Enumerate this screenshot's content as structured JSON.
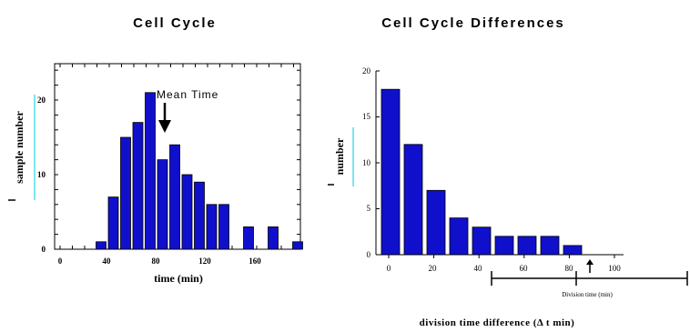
{
  "chart_data": [
    {
      "type": "bar",
      "title": "Cell Cycle",
      "xlabel": "time (min)",
      "ylabel": "sample number",
      "xlim": [
        0,
        200
      ],
      "ylim": [
        0,
        24
      ],
      "xticks": [
        "0",
        "40",
        "80",
        "120",
        "160"
      ],
      "yticks": [
        "0",
        "10",
        "20"
      ],
      "bin_width": 10,
      "bins": [
        {
          "x": 30,
          "value": 1
        },
        {
          "x": 40,
          "value": 7
        },
        {
          "x": 50,
          "value": 15
        },
        {
          "x": 60,
          "value": 17
        },
        {
          "x": 70,
          "value": 21
        },
        {
          "x": 80,
          "value": 12
        },
        {
          "x": 90,
          "value": 14
        },
        {
          "x": 100,
          "value": 10
        },
        {
          "x": 110,
          "value": 9
        },
        {
          "x": 120,
          "value": 6
        },
        {
          "x": 130,
          "value": 6
        },
        {
          "x": 150,
          "value": 3
        },
        {
          "x": 170,
          "value": 3
        },
        {
          "x": 190,
          "value": 1
        }
      ],
      "annotation": {
        "text": "Mean Time",
        "x": 90
      },
      "bar_color": "#1010cc",
      "grid": false
    },
    {
      "type": "bar",
      "title": "Cell Cycle Differences",
      "xlabel": "division time difference (Δ t  min)",
      "ylabel": "number",
      "xlim": [
        -5,
        105
      ],
      "ylim": [
        0,
        20
      ],
      "xticks": [
        "0",
        "20",
        "40",
        "60",
        "80",
        "100"
      ],
      "yticks": [
        "0",
        "5",
        "10",
        "15",
        "20"
      ],
      "bin_width": 10,
      "bins": [
        {
          "x": 0,
          "value": 18
        },
        {
          "x": 10,
          "value": 12
        },
        {
          "x": 20,
          "value": 7
        },
        {
          "x": 30,
          "value": 4
        },
        {
          "x": 40,
          "value": 3
        },
        {
          "x": 50,
          "value": 2
        },
        {
          "x": 60,
          "value": 2
        },
        {
          "x": 70,
          "value": 2
        },
        {
          "x": 80,
          "value": 1
        }
      ],
      "scale_bar_label": "Division time (min)",
      "bar_color": "#1010cc",
      "grid": false
    }
  ]
}
